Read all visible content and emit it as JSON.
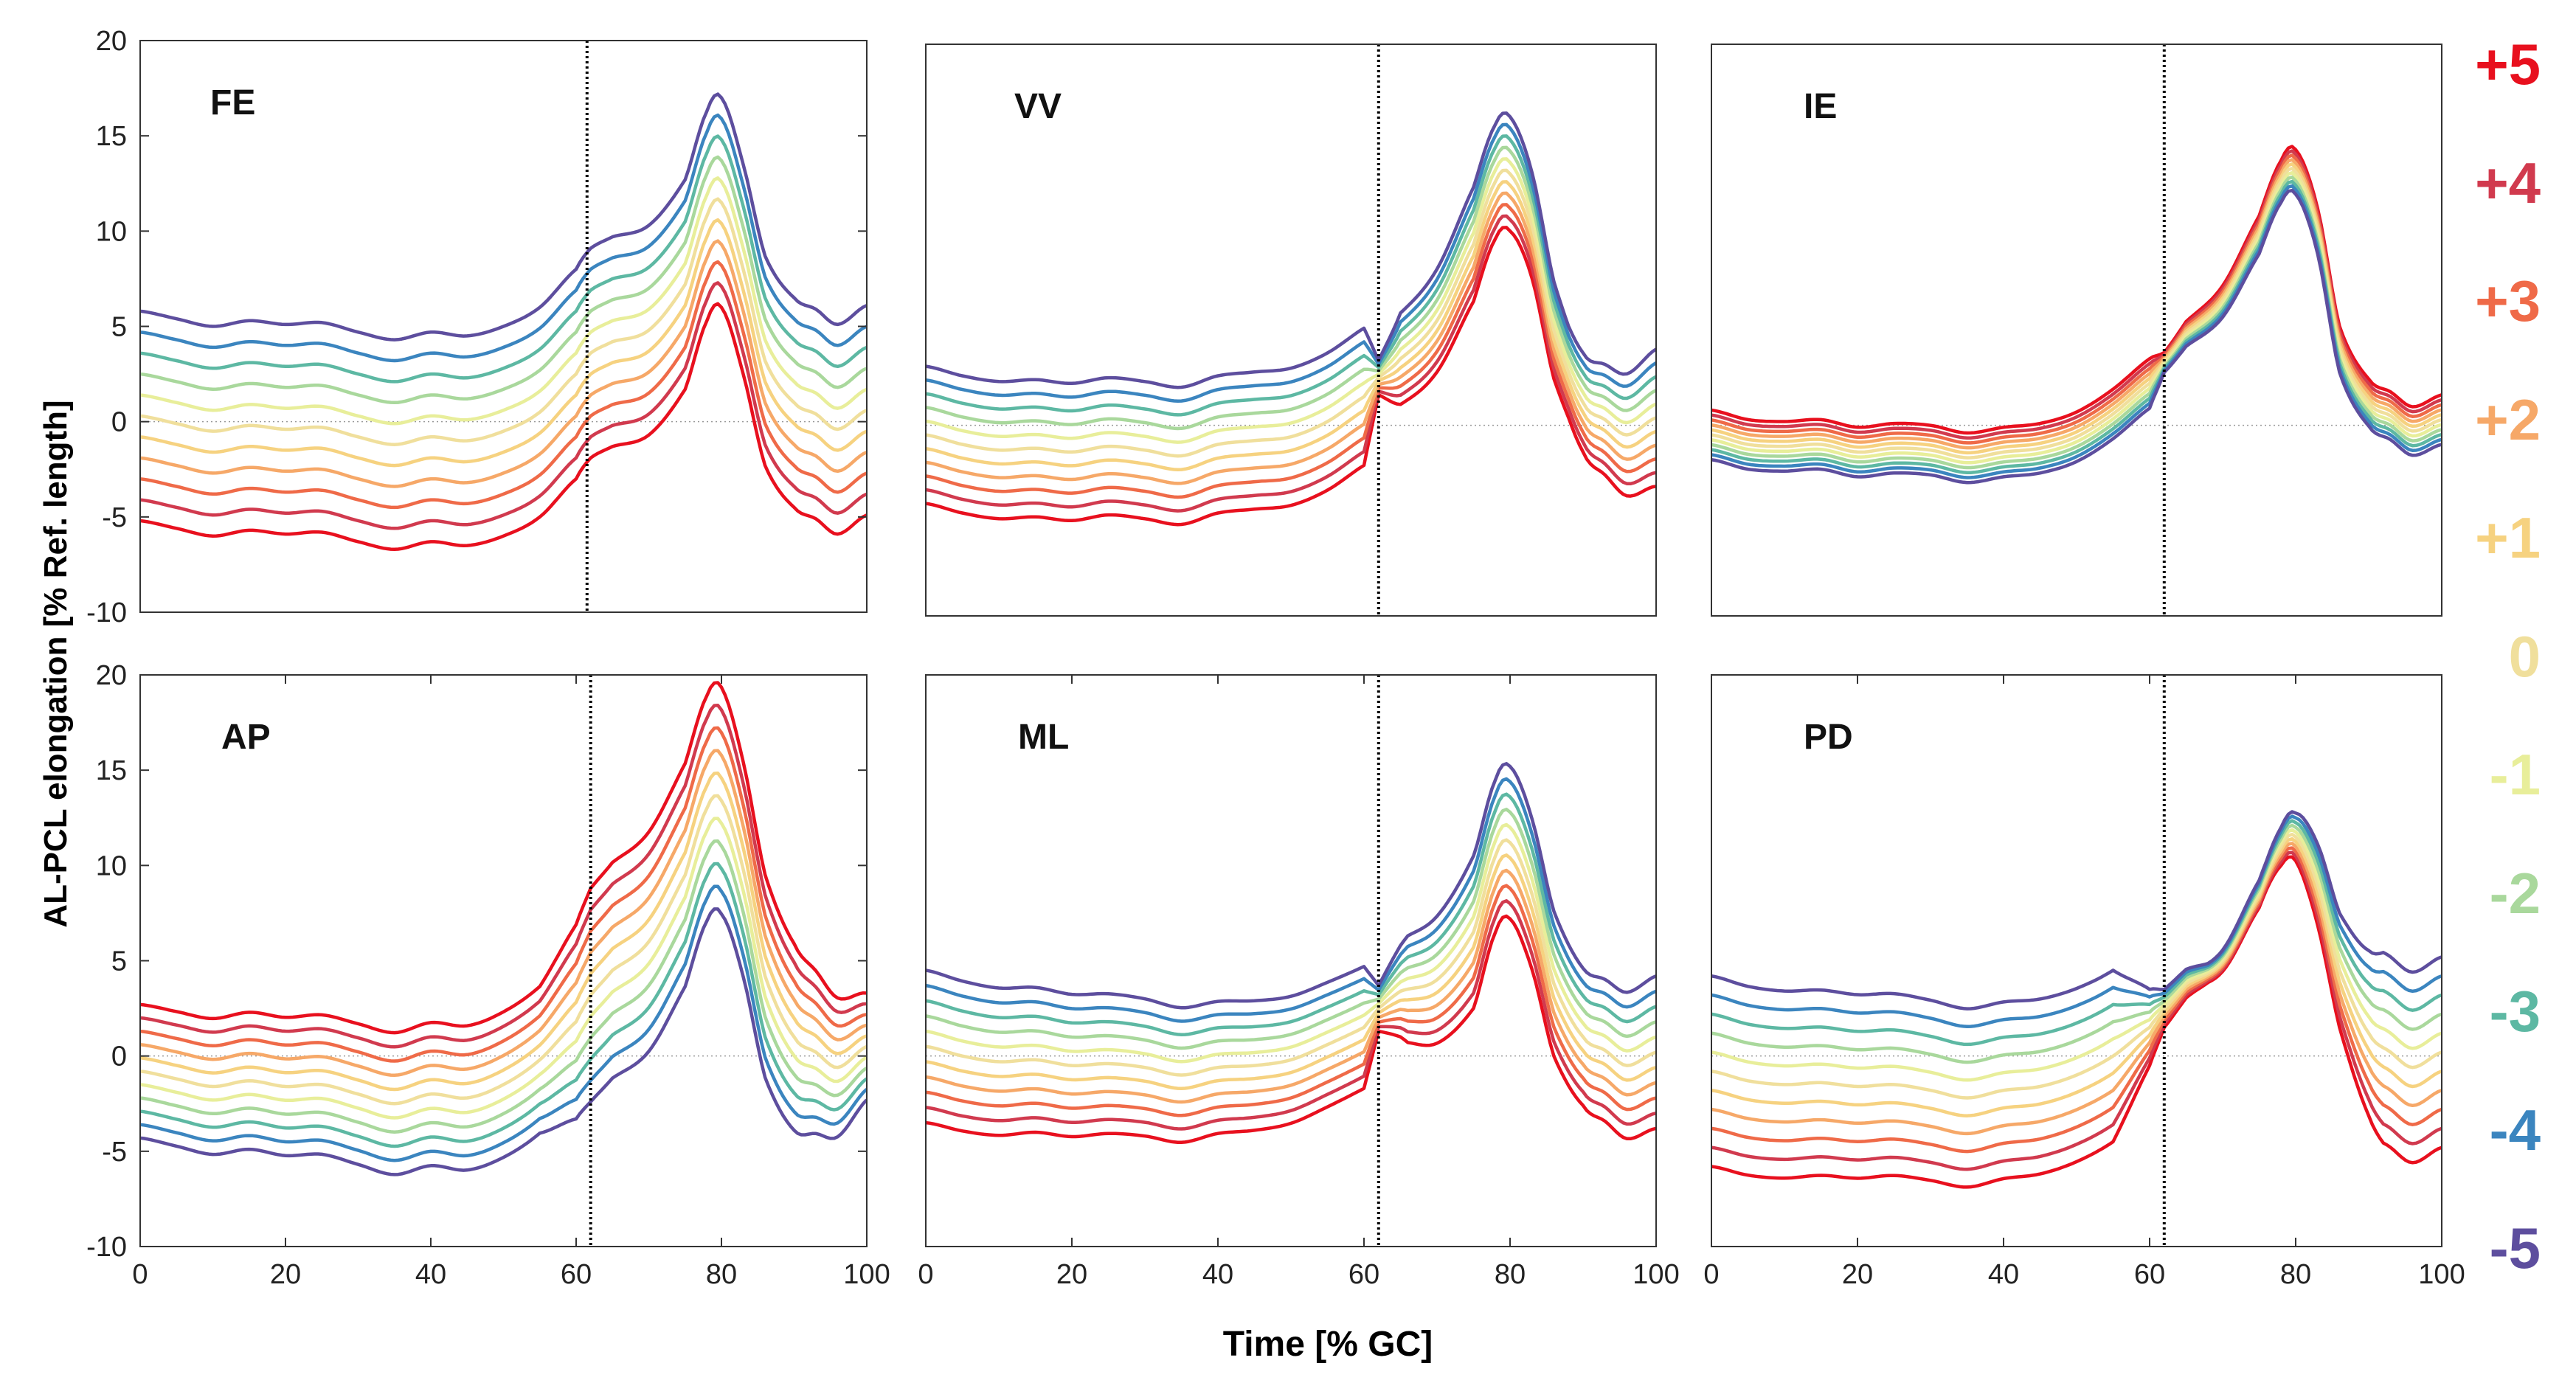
{
  "figure": {
    "y_axis_title": "AL-PCL elongation [% Ref. length]",
    "x_axis_title": "Time [% GC]"
  },
  "legend": {
    "title": "",
    "entries": [
      {
        "label": "+5",
        "color": "#e8101e"
      },
      {
        "label": "+4",
        "color": "#d13a4e"
      },
      {
        "label": "+3",
        "color": "#ef6a48"
      },
      {
        "label": "+2",
        "color": "#f6a868"
      },
      {
        "label": "+1",
        "color": "#f6d280"
      },
      {
        "label": "0",
        "color": "#f0df9c"
      },
      {
        "label": "-1",
        "color": "#e8ee9a"
      },
      {
        "label": "-2",
        "color": "#a9d89c"
      },
      {
        "label": "-3",
        "color": "#5db8a3"
      },
      {
        "label": "-4",
        "color": "#3b85bf"
      },
      {
        "label": "-5",
        "color": "#5d4e9e"
      }
    ]
  },
  "chart_data": [
    {
      "type": "line",
      "panel_label": "FE",
      "x_range": [
        0,
        100
      ],
      "ylim": [
        -10,
        20
      ],
      "y_ticks": [
        -10,
        -5,
        0,
        5,
        10,
        15,
        20
      ],
      "x_ticks": [],
      "y_tick_labels": [
        "-10",
        "-5",
        "0",
        "5",
        "10",
        "15",
        "20"
      ],
      "x_tick_labels": [],
      "vertical_line_x": 61.5,
      "zero_line": true,
      "reference_series": "0",
      "reference_curve": [
        [
          0,
          0.3
        ],
        [
          5,
          -0.1
        ],
        [
          10,
          -0.5
        ],
        [
          15,
          -0.2
        ],
        [
          20,
          -0.4
        ],
        [
          25,
          -0.3
        ],
        [
          30,
          -0.8
        ],
        [
          35,
          -1.2
        ],
        [
          40,
          -0.8
        ],
        [
          45,
          -1.0
        ],
        [
          50,
          -0.5
        ],
        [
          55,
          0.5
        ],
        [
          60,
          2.5
        ],
        [
          62,
          3.6
        ],
        [
          65,
          4.2
        ],
        [
          70,
          4.8
        ],
        [
          75,
          7.2
        ],
        [
          78,
          10.8
        ],
        [
          80,
          11.5
        ],
        [
          83,
          8.0
        ],
        [
          86,
          3.2
        ],
        [
          90,
          1.0
        ],
        [
          93,
          0.4
        ],
        [
          96,
          -0.4
        ],
        [
          100,
          0.6
        ]
      ],
      "series_offsets_by_label": {
        "+5": -5.5,
        "+4": -4.4,
        "+3": -3.3,
        "+2": -2.2,
        "+1": -1.1,
        "0": 0,
        "-1": 1.1,
        "-2": 2.2,
        "-3": 3.3,
        "-4": 4.4,
        "-5": 5.5
      },
      "offset_profile": [
        [
          0,
          1
        ],
        [
          100,
          1
        ]
      ]
    },
    {
      "type": "line",
      "panel_label": "VV",
      "x_range": [
        0,
        100
      ],
      "ylim": [
        -10,
        20
      ],
      "y_ticks": [],
      "x_ticks": [],
      "y_tick_labels": [],
      "x_tick_labels": [],
      "vertical_line_x": 62,
      "zero_line": true,
      "reference_series": "0",
      "reference_curve": [
        [
          0,
          -0.5
        ],
        [
          5,
          -1.0
        ],
        [
          10,
          -1.3
        ],
        [
          15,
          -1.2
        ],
        [
          20,
          -1.4
        ],
        [
          25,
          -1.1
        ],
        [
          30,
          -1.3
        ],
        [
          35,
          -1.6
        ],
        [
          40,
          -1.0
        ],
        [
          45,
          -0.8
        ],
        [
          50,
          -0.6
        ],
        [
          55,
          0.2
        ],
        [
          60,
          1.5
        ],
        [
          62,
          2.5
        ],
        [
          65,
          3.5
        ],
        [
          70,
          5.5
        ],
        [
          75,
          9.5
        ],
        [
          78,
          12.8
        ],
        [
          80,
          13.2
        ],
        [
          83,
          10.5
        ],
        [
          86,
          5.0
        ],
        [
          90,
          1.2
        ],
        [
          93,
          0.3
        ],
        [
          96,
          -0.5
        ],
        [
          100,
          0.4
        ]
      ],
      "series_offsets_by_label": {
        "+5": -3.0,
        "+4": -2.4,
        "+3": -1.8,
        "+2": -1.2,
        "+1": -0.6,
        "0": 0,
        "-1": 0.6,
        "-2": 1.2,
        "-3": 1.8,
        "-4": 2.4,
        "-5": 3.0
      },
      "offset_profile": [
        [
          0,
          1.2
        ],
        [
          60,
          1.2
        ],
        [
          62,
          0.3
        ],
        [
          65,
          0.8
        ],
        [
          75,
          1
        ],
        [
          80,
          1
        ],
        [
          88,
          0.8
        ],
        [
          100,
          1.2
        ]
      ]
    },
    {
      "type": "line",
      "panel_label": "IE",
      "x_range": [
        0,
        100
      ],
      "ylim": [
        -10,
        20
      ],
      "y_ticks": [],
      "x_ticks": [],
      "y_tick_labels": [],
      "x_tick_labels": [],
      "vertical_line_x": 62,
      "zero_line": true,
      "reference_series": "0",
      "reference_curve": [
        [
          0,
          -0.5
        ],
        [
          5,
          -1.0
        ],
        [
          10,
          -1.1
        ],
        [
          15,
          -1.0
        ],
        [
          20,
          -1.4
        ],
        [
          25,
          -1.2
        ],
        [
          30,
          -1.3
        ],
        [
          35,
          -1.7
        ],
        [
          40,
          -1.4
        ],
        [
          45,
          -1.2
        ],
        [
          50,
          -0.6
        ],
        [
          55,
          0.6
        ],
        [
          60,
          2.2
        ],
        [
          62,
          3.3
        ],
        [
          65,
          4.8
        ],
        [
          70,
          6.5
        ],
        [
          75,
          10.0
        ],
        [
          78,
          12.8
        ],
        [
          80,
          13.3
        ],
        [
          83,
          10.2
        ],
        [
          86,
          4.0
        ],
        [
          90,
          1.2
        ],
        [
          93,
          0.5
        ],
        [
          96,
          -0.3
        ],
        [
          100,
          0.3
        ]
      ],
      "series_offsets_by_label": {
        "+5": 1.3,
        "+4": 1.04,
        "+3": 0.78,
        "+2": 0.52,
        "+1": 0.26,
        "0": 0,
        "-1": -0.26,
        "-2": -0.52,
        "-3": -0.78,
        "-4": -1.04,
        "-5": -1.3
      },
      "offset_profile": [
        [
          0,
          1
        ],
        [
          60,
          1
        ],
        [
          62,
          0.4
        ],
        [
          65,
          0.5
        ],
        [
          80,
          0.9
        ],
        [
          100,
          1
        ]
      ]
    },
    {
      "type": "line",
      "panel_label": "AP",
      "x_range": [
        0,
        100
      ],
      "ylim": [
        -10,
        20
      ],
      "y_ticks": [
        -10,
        -5,
        0,
        5,
        10,
        15,
        20
      ],
      "x_ticks": [
        0,
        20,
        40,
        60,
        80,
        100
      ],
      "y_tick_labels": [
        "-10",
        "-5",
        "0",
        "5",
        "10",
        "15",
        "20"
      ],
      "x_tick_labels": [
        "0",
        "20",
        "40",
        "60",
        "80",
        "100"
      ],
      "vertical_line_x": 62,
      "zero_line": true,
      "reference_series": "0",
      "reference_curve": [
        [
          0,
          -0.8
        ],
        [
          5,
          -1.2
        ],
        [
          10,
          -1.6
        ],
        [
          15,
          -1.3
        ],
        [
          20,
          -1.6
        ],
        [
          25,
          -1.5
        ],
        [
          30,
          -2.0
        ],
        [
          35,
          -2.5
        ],
        [
          40,
          -2.0
        ],
        [
          45,
          -2.2
        ],
        [
          50,
          -1.5
        ],
        [
          55,
          -0.2
        ],
        [
          60,
          1.8
        ],
        [
          62,
          3.2
        ],
        [
          65,
          4.5
        ],
        [
          70,
          6.0
        ],
        [
          75,
          9.5
        ],
        [
          78,
          13.0
        ],
        [
          80,
          13.4
        ],
        [
          83,
          9.8
        ],
        [
          86,
          4.2
        ],
        [
          90,
          1.0
        ],
        [
          93,
          0.2
        ],
        [
          96,
          -0.6
        ],
        [
          100,
          0.5
        ]
      ],
      "series_offsets_by_label": {
        "+5": 3.5,
        "+4": 2.8,
        "+3": 2.1,
        "+2": 1.4,
        "+1": 0.7,
        "0": 0,
        "-1": -0.7,
        "-2": -1.4,
        "-3": -2.1,
        "-4": -2.8,
        "-5": -3.5
      },
      "offset_profile": [
        [
          0,
          1
        ],
        [
          55,
          1.1
        ],
        [
          62,
          1.6
        ],
        [
          80,
          1.7
        ],
        [
          90,
          1.4
        ],
        [
          100,
          0.8
        ]
      ]
    },
    {
      "type": "line",
      "panel_label": "ML",
      "x_range": [
        0,
        100
      ],
      "ylim": [
        -10,
        20
      ],
      "y_ticks": [],
      "x_ticks": [
        0,
        20,
        40,
        60,
        80,
        100
      ],
      "y_tick_labels": [],
      "x_tick_labels": [
        "0",
        "20",
        "40",
        "60",
        "80",
        "100"
      ],
      "vertical_line_x": 62,
      "zero_line": true,
      "reference_series": "0",
      "reference_curve": [
        [
          0,
          0.5
        ],
        [
          5,
          0.0
        ],
        [
          10,
          -0.3
        ],
        [
          15,
          -0.2
        ],
        [
          20,
          -0.5
        ],
        [
          25,
          -0.4
        ],
        [
          30,
          -0.6
        ],
        [
          35,
          -1.0
        ],
        [
          40,
          -0.6
        ],
        [
          45,
          -0.5
        ],
        [
          50,
          -0.2
        ],
        [
          55,
          0.6
        ],
        [
          60,
          1.5
        ],
        [
          62,
          2.5
        ],
        [
          65,
          3.4
        ],
        [
          70,
          4.0
        ],
        [
          75,
          6.5
        ],
        [
          78,
          10.5
        ],
        [
          80,
          11.2
        ],
        [
          83,
          8.5
        ],
        [
          86,
          3.8
        ],
        [
          90,
          1.0
        ],
        [
          93,
          0.3
        ],
        [
          96,
          -0.5
        ],
        [
          100,
          0.2
        ]
      ],
      "series_offsets_by_label": {
        "+5": -4.0,
        "+4": -3.2,
        "+3": -2.4,
        "+2": -1.6,
        "+1": -0.8,
        "0": 0,
        "-1": 0.8,
        "-2": 1.6,
        "-3": 2.4,
        "-4": 3.2,
        "-5": 4.0
      },
      "offset_profile": [
        [
          0,
          1
        ],
        [
          60,
          0.8
        ],
        [
          62,
          0.3
        ],
        [
          66,
          0.7
        ],
        [
          75,
          1
        ],
        [
          82,
          1
        ],
        [
          90,
          0.9
        ],
        [
          100,
          1.0
        ]
      ]
    },
    {
      "type": "line",
      "panel_label": "PD",
      "x_range": [
        0,
        100
      ],
      "ylim": [
        -10,
        20
      ],
      "y_ticks": [],
      "x_ticks": [
        0,
        20,
        40,
        60,
        80,
        100
      ],
      "y_tick_labels": [],
      "x_tick_labels": [
        "0",
        "20",
        "40",
        "60",
        "80",
        "100"
      ],
      "vertical_line_x": 62,
      "zero_line": true,
      "reference_series": "0",
      "reference_curve": [
        [
          0,
          -0.8
        ],
        [
          5,
          -1.3
        ],
        [
          10,
          -1.5
        ],
        [
          15,
          -1.4
        ],
        [
          20,
          -1.6
        ],
        [
          25,
          -1.5
        ],
        [
          30,
          -1.8
        ],
        [
          35,
          -2.2
        ],
        [
          40,
          -1.8
        ],
        [
          45,
          -1.6
        ],
        [
          50,
          -1.0
        ],
        [
          55,
          0.0
        ],
        [
          60,
          1.5
        ],
        [
          62,
          2.5
        ],
        [
          65,
          3.8
        ],
        [
          70,
          5.0
        ],
        [
          75,
          8.5
        ],
        [
          78,
          11.0
        ],
        [
          80,
          11.5
        ],
        [
          83,
          9.0
        ],
        [
          86,
          4.5
        ],
        [
          90,
          1.2
        ],
        [
          93,
          0.2
        ],
        [
          96,
          -0.6
        ],
        [
          100,
          0.2
        ]
      ],
      "series_offsets_by_label": {
        "+5": -5.0,
        "+4": -4.0,
        "+3": -3.0,
        "+2": -2.0,
        "+1": -1.0,
        "0": 0,
        "-1": 1.0,
        "-2": 2.0,
        "-3": 3.0,
        "-4": 4.0,
        "-5": 5.0
      },
      "offset_profile": [
        [
          0,
          1
        ],
        [
          55,
          0.9
        ],
        [
          62,
          0.2
        ],
        [
          68,
          0.1
        ],
        [
          76,
          0.15
        ],
        [
          80,
          0.25
        ],
        [
          86,
          0.6
        ],
        [
          92,
          1.0
        ],
        [
          100,
          1.0
        ]
      ]
    }
  ]
}
